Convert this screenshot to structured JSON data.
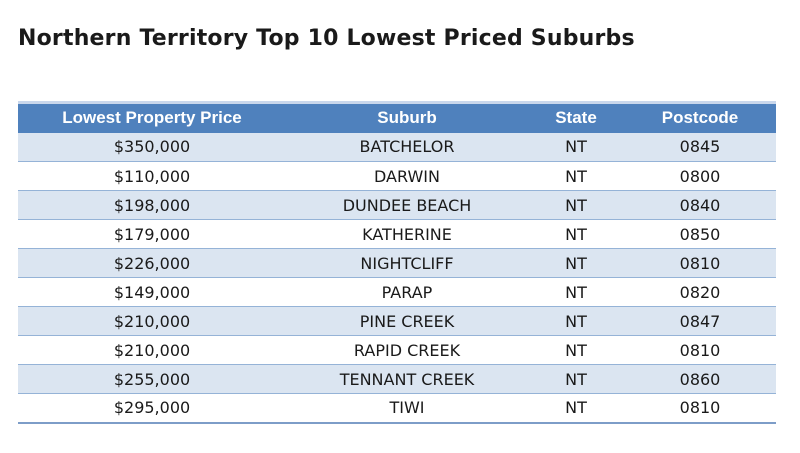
{
  "title": "Northern Territory Top 10 Lowest Priced Suburbs",
  "table": {
    "headers": [
      "Lowest Property Price",
      "Suburb",
      "State",
      "Postcode"
    ],
    "rows": [
      [
        "$350,000",
        "BATCHELOR",
        "NT",
        "0845"
      ],
      [
        "$110,000",
        "DARWIN",
        "NT",
        "0800"
      ],
      [
        "$198,000",
        "DUNDEE BEACH",
        "NT",
        "0840"
      ],
      [
        "$179,000",
        "KATHERINE",
        "NT",
        "0850"
      ],
      [
        "$226,000",
        "NIGHTCLIFF",
        "NT",
        "0810"
      ],
      [
        "$149,000",
        "PARAP",
        "NT",
        "0820"
      ],
      [
        "$210,000",
        "PINE CREEK",
        "NT",
        "0847"
      ],
      [
        "$210,000",
        "RAPID CREEK",
        "NT",
        "0810"
      ],
      [
        "$255,000",
        "TENNANT CREEK",
        "NT",
        "0860"
      ],
      [
        "$295,000",
        "TIWI",
        "NT",
        "0810"
      ]
    ]
  },
  "colors": {
    "header_bg": "#4f81bd",
    "band_bg": "#dbe5f1",
    "rule": "#95b3d7"
  }
}
